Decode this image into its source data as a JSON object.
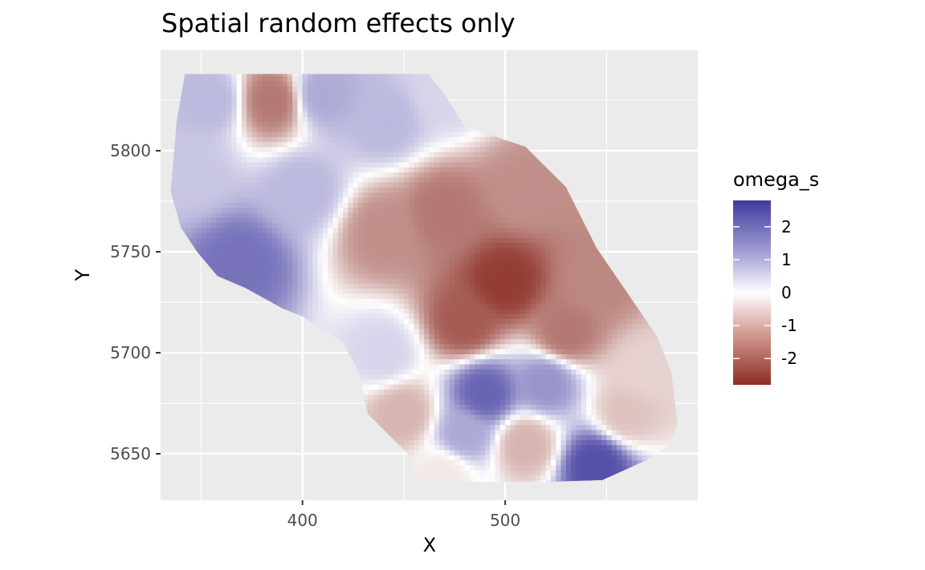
{
  "chart_data": {
    "type": "heatmap",
    "title": "Spatial random effects only",
    "xlabel": "X",
    "ylabel": "Y",
    "xlim": [
      330,
      595
    ],
    "ylim": [
      5627,
      5850
    ],
    "x_ticks": [
      400,
      500
    ],
    "x_tick_labels": [
      "400",
      "500"
    ],
    "y_ticks": [
      5650,
      5700,
      5750,
      5800
    ],
    "y_tick_labels": [
      "5650",
      "5700",
      "5750",
      "5800"
    ],
    "grid": true,
    "legend": {
      "title": "omega_s",
      "placement": "right",
      "range": [
        -2.8,
        2.8
      ],
      "ticks": [
        2,
        1,
        0,
        -1,
        -2
      ],
      "tick_labels": [
        "2",
        "1",
        "0",
        "-1",
        "-2"
      ],
      "low_color": "#8b2e24",
      "mid_color": "#ffffff",
      "high_color": "#403a9f"
    },
    "region_boundary": [
      [
        342,
        5838
      ],
      [
        370,
        5838
      ],
      [
        462,
        5838
      ],
      [
        470,
        5828
      ],
      [
        480,
        5812
      ],
      [
        510,
        5802
      ],
      [
        530,
        5782
      ],
      [
        545,
        5752
      ],
      [
        560,
        5730
      ],
      [
        575,
        5708
      ],
      [
        582,
        5690
      ],
      [
        585,
        5665
      ],
      [
        582,
        5655
      ],
      [
        570,
        5647
      ],
      [
        548,
        5637
      ],
      [
        520,
        5636
      ],
      [
        495,
        5636
      ],
      [
        458,
        5636
      ],
      [
        452,
        5650
      ],
      [
        432,
        5670
      ],
      [
        428,
        5690
      ],
      [
        420,
        5705
      ],
      [
        400,
        5718
      ],
      [
        390,
        5722
      ],
      [
        372,
        5732
      ],
      [
        358,
        5738
      ],
      [
        348,
        5750
      ],
      [
        340,
        5762
      ],
      [
        335,
        5780
      ],
      [
        338,
        5815
      ]
    ],
    "field_centers": [
      {
        "x": 385,
        "y": 5825,
        "value": -1.8
      },
      {
        "x": 410,
        "y": 5828,
        "value": 1.2
      },
      {
        "x": 355,
        "y": 5825,
        "value": 1.0
      },
      {
        "x": 370,
        "y": 5745,
        "value": 2.0
      },
      {
        "x": 345,
        "y": 5790,
        "value": 0.8
      },
      {
        "x": 400,
        "y": 5780,
        "value": 1.0
      },
      {
        "x": 440,
        "y": 5815,
        "value": 1.0
      },
      {
        "x": 470,
        "y": 5830,
        "value": 0.6
      },
      {
        "x": 440,
        "y": 5760,
        "value": -1.5
      },
      {
        "x": 470,
        "y": 5770,
        "value": -1.8
      },
      {
        "x": 510,
        "y": 5780,
        "value": -1.5
      },
      {
        "x": 545,
        "y": 5735,
        "value": -1.6
      },
      {
        "x": 500,
        "y": 5735,
        "value": -2.6
      },
      {
        "x": 480,
        "y": 5715,
        "value": -2.2
      },
      {
        "x": 530,
        "y": 5710,
        "value": -1.8
      },
      {
        "x": 440,
        "y": 5700,
        "value": 0.6
      },
      {
        "x": 450,
        "y": 5670,
        "value": -1.0
      },
      {
        "x": 490,
        "y": 5680,
        "value": 2.2
      },
      {
        "x": 480,
        "y": 5660,
        "value": 1.2
      },
      {
        "x": 520,
        "y": 5685,
        "value": 1.5
      },
      {
        "x": 545,
        "y": 5645,
        "value": 2.5
      },
      {
        "x": 560,
        "y": 5670,
        "value": -0.8
      },
      {
        "x": 510,
        "y": 5655,
        "value": -1.0
      },
      {
        "x": 570,
        "y": 5690,
        "value": -0.6
      },
      {
        "x": 470,
        "y": 5640,
        "value": -0.3
      }
    ]
  }
}
